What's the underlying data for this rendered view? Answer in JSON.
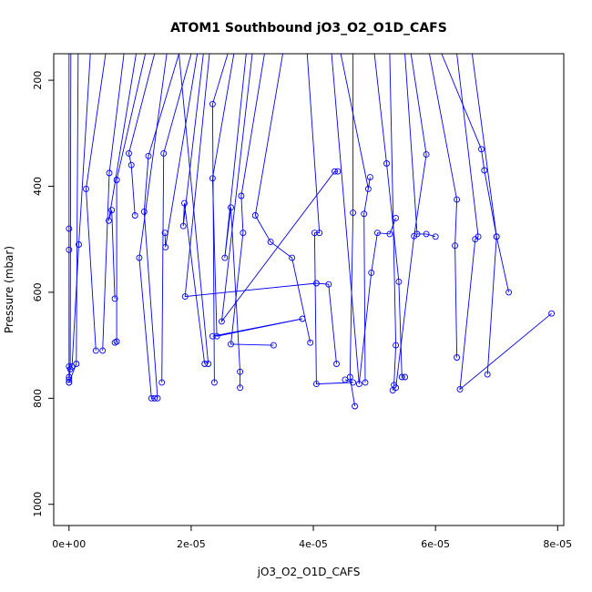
{
  "chart_data": {
    "type": "line",
    "title": "ATOM1 Southbound jO3_O2_O1D_CAFS",
    "xlabel": "jO3_O2_O1D_CAFS",
    "ylabel": "Pressure (mbar)",
    "xlim": [
      -2.5e-06,
      8.1e-05
    ],
    "ylim": [
      1040,
      150
    ],
    "y_reversed": true,
    "grid": false,
    "line_color": "#0000ff",
    "marker": "open-circle",
    "x_ticks": [
      {
        "value": 0,
        "label": "0e+00"
      },
      {
        "value": 2e-05,
        "label": "2e-05"
      },
      {
        "value": 4e-05,
        "label": "4e-05"
      },
      {
        "value": 6e-05,
        "label": "6e-05"
      },
      {
        "value": 8e-05,
        "label": "8e-05"
      }
    ],
    "y_ticks": [
      {
        "value": 200,
        "label": "200"
      },
      {
        "value": 400,
        "label": "400"
      },
      {
        "value": 600,
        "label": "600"
      },
      {
        "value": 800,
        "label": "800"
      },
      {
        "value": 1000,
        "label": "1000"
      }
    ],
    "series": [
      {
        "points": [
          [
            0,
            150
          ],
          [
            0,
            480
          ],
          [
            0,
            520
          ],
          [
            0,
            740
          ],
          [
            0,
            760
          ],
          [
            0,
            770
          ]
        ]
      },
      {
        "points": [
          [
            3e-07,
            150
          ],
          [
            2e-07,
            745
          ],
          [
            0,
            765
          ]
        ]
      },
      {
        "points": [
          [
            1.5e-06,
            150
          ],
          [
            1.2e-06,
            735
          ],
          [
            0,
            770
          ]
        ]
      },
      {
        "points": [
          [
            3.5e-06,
            150
          ],
          [
            1.6e-06,
            510
          ],
          [
            5e-07,
            740
          ]
        ]
      },
      {
        "points": [
          [
            6e-06,
            150
          ],
          [
            2.8e-06,
            405
          ],
          [
            4.4e-06,
            710
          ]
        ]
      },
      {
        "points": [
          [
            9e-06,
            150
          ],
          [
            6.6e-06,
            375
          ],
          [
            5.5e-06,
            710
          ]
        ]
      },
      {
        "points": [
          [
            1.1e-05,
            150
          ],
          [
            6.5e-06,
            465
          ],
          [
            7e-06,
            445
          ],
          [
            7.5e-06,
            612
          ]
        ]
      },
      {
        "points": [
          [
            1.25e-05,
            150
          ],
          [
            7.8e-06,
            388
          ],
          [
            7.8e-06,
            693
          ],
          [
            7.5e-06,
            695
          ]
        ]
      },
      {
        "points": [
          [
            1.4e-05,
            150
          ],
          [
            9.8e-06,
            338
          ],
          [
            1.02e-05,
            360
          ],
          [
            1.08e-05,
            455
          ]
        ]
      },
      {
        "points": [
          [
            1.6e-05,
            150
          ],
          [
            1.15e-05,
            535
          ],
          [
            1.35e-05,
            800
          ],
          [
            1.4e-05,
            800
          ]
        ]
      },
      {
        "points": [
          [
            1.8e-05,
            150
          ],
          [
            1.3e-05,
            343
          ],
          [
            1.23e-05,
            448
          ],
          [
            1.45e-05,
            800
          ]
        ]
      },
      {
        "points": [
          [
            2e-05,
            150
          ],
          [
            1.55e-05,
            338
          ],
          [
            1.52e-05,
            770
          ]
        ]
      },
      {
        "points": [
          [
            2.1e-05,
            150
          ],
          [
            1.58e-05,
            515
          ],
          [
            1.57e-05,
            488
          ]
        ]
      },
      {
        "points": [
          [
            2.2e-05,
            150
          ],
          [
            1.87e-05,
            475
          ],
          [
            1.89e-05,
            432
          ],
          [
            2.22e-05,
            735
          ]
        ]
      },
      {
        "points": [
          [
            1.8e-05,
            150
          ],
          [
            2.28e-05,
            735
          ]
        ]
      },
      {
        "points": [
          [
            2.3e-05,
            150
          ],
          [
            1.9e-05,
            608
          ],
          [
            4.05e-05,
            583
          ],
          [
            4.25e-05,
            585
          ],
          [
            4.38e-05,
            735
          ]
        ]
      },
      {
        "points": [
          [
            2.6e-05,
            150
          ],
          [
            2.35e-05,
            245
          ],
          [
            2.38e-05,
            770
          ]
        ]
      },
      {
        "points": [
          [
            2.7e-05,
            150
          ],
          [
            2.35e-05,
            385
          ],
          [
            2.42e-05,
            683
          ],
          [
            3.82e-05,
            650
          ],
          [
            2.35e-05,
            683
          ]
        ]
      },
      {
        "points": [
          [
            2.9e-05,
            150
          ],
          [
            2.55e-05,
            535
          ],
          [
            2.65e-05,
            440
          ],
          [
            2.8e-05,
            750
          ],
          [
            2.8e-05,
            780
          ]
        ]
      },
      {
        "points": [
          [
            3e-05,
            150
          ],
          [
            2.5e-05,
            655
          ],
          [
            4.35e-05,
            372
          ],
          [
            4.4e-05,
            372
          ]
        ]
      },
      {
        "points": [
          [
            3.2e-05,
            150
          ],
          [
            2.82e-05,
            418
          ],
          [
            2.85e-05,
            488
          ],
          [
            2.65e-05,
            698
          ],
          [
            3.35e-05,
            700
          ]
        ]
      },
      {
        "points": [
          [
            3.5e-05,
            150
          ],
          [
            3.05e-05,
            455
          ],
          [
            3.3e-05,
            505
          ],
          [
            3.65e-05,
            535
          ],
          [
            3.95e-05,
            695
          ]
        ]
      },
      {
        "points": [
          [
            3.9e-05,
            150
          ],
          [
            4.1e-05,
            488
          ],
          [
            4.02e-05,
            488
          ],
          [
            4.05e-05,
            773
          ],
          [
            4.65e-05,
            770
          ],
          [
            4.52e-05,
            765
          ]
        ]
      },
      {
        "points": [
          [
            4.3e-05,
            150
          ],
          [
            4.75e-05,
            773
          ],
          [
            4.95e-05,
            563
          ],
          [
            5.05e-05,
            488
          ],
          [
            5.25e-05,
            490
          ],
          [
            5.35e-05,
            460
          ]
        ]
      },
      {
        "points": [
          [
            4.45e-05,
            150
          ],
          [
            4.9e-05,
            405
          ],
          [
            4.93e-05,
            383
          ],
          [
            4.83e-05,
            452
          ],
          [
            4.85e-05,
            770
          ]
        ]
      },
      {
        "points": [
          [
            4.65e-05,
            150
          ],
          [
            4.65e-05,
            450
          ],
          [
            4.6e-05,
            760
          ],
          [
            4.68e-05,
            815
          ]
        ]
      },
      {
        "points": [
          [
            5e-05,
            150
          ],
          [
            5.2e-05,
            357
          ],
          [
            5.4e-05,
            580
          ],
          [
            5.45e-05,
            760
          ],
          [
            5.5e-05,
            760
          ]
        ]
      },
      {
        "points": [
          [
            5.25e-05,
            150
          ],
          [
            5.35e-05,
            700
          ],
          [
            5.32e-05,
            775
          ],
          [
            5.3e-05,
            785
          ]
        ]
      },
      {
        "points": [
          [
            5.6e-05,
            150
          ],
          [
            5.85e-05,
            340
          ],
          [
            5.65e-05,
            494
          ],
          [
            5.35e-05,
            780
          ]
        ]
      },
      {
        "points": [
          [
            5.9e-05,
            150
          ],
          [
            6.35e-05,
            425
          ],
          [
            6.32e-05,
            512
          ],
          [
            6.35e-05,
            723
          ]
        ]
      },
      {
        "points": [
          [
            6.1e-05,
            150
          ],
          [
            6.75e-05,
            330
          ],
          [
            6.8e-05,
            370
          ],
          [
            7e-05,
            495
          ],
          [
            7.2e-05,
            600
          ]
        ]
      },
      {
        "points": [
          [
            6.35e-05,
            150
          ],
          [
            6.7e-05,
            495
          ],
          [
            6.65e-05,
            500
          ],
          [
            6.4e-05,
            783
          ],
          [
            7.9e-05,
            640
          ]
        ]
      },
      {
        "points": [
          [
            6.6e-05,
            150
          ],
          [
            7e-05,
            495
          ],
          [
            6.85e-05,
            755
          ]
        ]
      },
      {
        "points": [
          [
            5.5e-05,
            150
          ],
          [
            5.7e-05,
            490
          ],
          [
            5.85e-05,
            490
          ],
          [
            6e-05,
            495
          ]
        ]
      }
    ]
  }
}
